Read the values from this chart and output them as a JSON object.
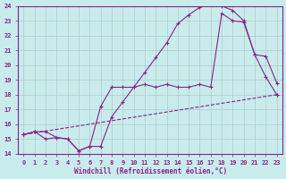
{
  "xlabel": "Windchill (Refroidissement éolien,°C)",
  "bg_color": "#c8ecec",
  "grid_color": "#b0c8c8",
  "line_color": "#882288",
  "xlim": [
    -0.5,
    23.5
  ],
  "ylim": [
    14,
    24
  ],
  "xticks": [
    0,
    1,
    2,
    3,
    4,
    5,
    6,
    7,
    8,
    9,
    10,
    11,
    12,
    13,
    14,
    15,
    16,
    17,
    18,
    19,
    20,
    21,
    22,
    23
  ],
  "yticks": [
    14,
    15,
    16,
    17,
    18,
    19,
    20,
    21,
    22,
    23,
    24
  ],
  "line1_x": [
    0,
    1,
    2,
    3,
    4,
    5,
    6,
    7,
    8,
    9,
    10,
    11,
    12,
    13,
    14,
    15,
    16,
    17,
    18,
    19,
    20,
    21,
    22,
    23
  ],
  "line1_y": [
    15.3,
    15.5,
    15.5,
    15.1,
    15.0,
    14.2,
    14.5,
    14.5,
    16.5,
    17.5,
    18.5,
    19.5,
    20.5,
    21.5,
    22.8,
    23.4,
    23.9,
    24.1,
    24.0,
    23.7,
    23.0,
    20.7,
    20.6,
    18.8
  ],
  "line2_x": [
    0,
    1,
    2,
    3,
    4,
    5,
    6,
    7,
    8,
    9,
    10,
    11,
    12,
    13,
    14,
    15,
    16,
    17,
    18,
    19,
    20,
    21,
    22,
    23
  ],
  "line2_y": [
    15.3,
    15.5,
    15.0,
    15.1,
    15.0,
    14.2,
    14.5,
    17.2,
    18.5,
    18.5,
    18.5,
    18.7,
    18.5,
    18.7,
    18.5,
    18.5,
    18.7,
    18.5,
    23.5,
    23.0,
    22.9,
    20.7,
    19.2,
    18.0
  ],
  "line3_x": [
    0,
    23
  ],
  "line3_y": [
    15.3,
    18.0
  ],
  "marker": "+"
}
